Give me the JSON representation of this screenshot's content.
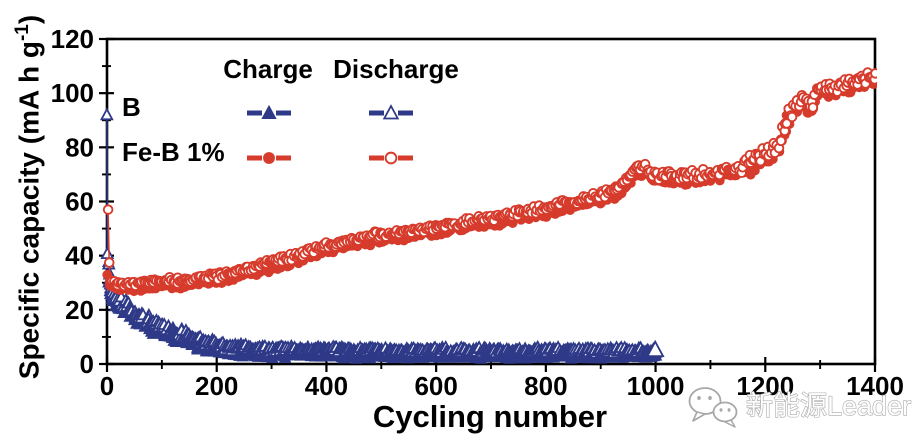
{
  "watermark": {
    "text": "新能源Leader"
  },
  "chart_data": {
    "type": "scatter",
    "title": "",
    "xlabel": "Cycling number",
    "ylabel": "Specific capacity (mA h g-1)",
    "ylabel_parts": {
      "pre": "Specific capacity (mA h g",
      "sup": "-1",
      "post": ")"
    },
    "xlim": [
      0,
      1400
    ],
    "ylim": [
      0,
      120
    ],
    "x_major_ticks": [
      0,
      200,
      400,
      600,
      800,
      1000,
      1200,
      1400
    ],
    "x_minor_ticks": [
      100,
      300,
      500,
      700,
      900,
      1100,
      1300
    ],
    "y_major_ticks": [
      0,
      20,
      40,
      60,
      80,
      100,
      120
    ],
    "y_minor_ticks": [
      10,
      30,
      50,
      70,
      90,
      110
    ],
    "grid": false,
    "axis_color": "#000000",
    "legend": {
      "position": "top-left-inside",
      "headers": [
        "Charge",
        "Discharge"
      ],
      "rows": [
        {
          "label": "B",
          "color": "#2e3a88",
          "charge_marker": "triangle-filled",
          "discharge_marker": "triangle-open"
        },
        {
          "label": "Fe-B 1%",
          "color": "#d63b2c",
          "charge_marker": "circle-filled",
          "discharge_marker": "circle-open"
        }
      ]
    },
    "series": [
      {
        "name": "B charge",
        "group": "B",
        "mode": "charge",
        "marker": "triangle-filled",
        "color": "#2e3a88",
        "x_start": 1,
        "x_end": 1000,
        "step": 2,
        "seed": 7,
        "anchors": [
          [
            1,
            38
          ],
          [
            3,
            30
          ],
          [
            5,
            27
          ],
          [
            10,
            24
          ],
          [
            20,
            21.3
          ],
          [
            33,
            19.8
          ],
          [
            50,
            16.3
          ],
          [
            78,
            13.3
          ],
          [
            120,
            9.8
          ],
          [
            170,
            6.3
          ],
          [
            225,
            3.9
          ],
          [
            300,
            3.4
          ],
          [
            500,
            3.0
          ],
          [
            800,
            2.9
          ],
          [
            1000,
            3.0
          ]
        ],
        "noise": [
          [
            6,
            0.4
          ],
          [
            40,
            2.4
          ],
          [
            150,
            2.0
          ],
          [
            300,
            1.6
          ],
          [
            1000,
            1.2
          ]
        ]
      },
      {
        "name": "B discharge",
        "group": "B",
        "mode": "discharge",
        "marker": "triangle-open",
        "color": "#2e3a88",
        "x_start": 1,
        "x_end": 1000,
        "step": 2,
        "seed": 13,
        "end_marker_scale": 1.45,
        "anchors": [
          [
            1,
            92
          ],
          [
            2,
            41
          ],
          [
            4,
            33
          ],
          [
            6,
            29.5
          ],
          [
            10,
            26
          ],
          [
            20,
            23.7
          ],
          [
            33,
            22.2
          ],
          [
            50,
            18.7
          ],
          [
            78,
            15.7
          ],
          [
            120,
            12.2
          ],
          [
            170,
            8.7
          ],
          [
            225,
            6.3
          ],
          [
            300,
            5.6
          ],
          [
            500,
            5.1
          ],
          [
            800,
            5.0
          ],
          [
            1000,
            5.0
          ]
        ],
        "noise": [
          [
            6,
            0.3
          ],
          [
            40,
            2.4
          ],
          [
            150,
            2.0
          ],
          [
            300,
            1.6
          ],
          [
            1000,
            1.2
          ]
        ]
      },
      {
        "name": "Fe-B 1% charge",
        "group": "Fe-B 1%",
        "mode": "charge",
        "marker": "circle-filled",
        "color": "#d63b2c",
        "x_start": 1,
        "x_end": 1400,
        "step": 3,
        "seed": 21,
        "anchors": [
          [
            1,
            33
          ],
          [
            5,
            29
          ],
          [
            20,
            27.8
          ],
          [
            50,
            27.8
          ],
          [
            100,
            28.6
          ],
          [
            150,
            29.2
          ],
          [
            200,
            30.5
          ],
          [
            250,
            33
          ],
          [
            300,
            35.5
          ],
          [
            350,
            38.5
          ],
          [
            400,
            42
          ],
          [
            450,
            44
          ],
          [
            500,
            45.8
          ],
          [
            550,
            47
          ],
          [
            600,
            48.5
          ],
          [
            650,
            50.3
          ],
          [
            700,
            52
          ],
          [
            750,
            53.8
          ],
          [
            800,
            55.5
          ],
          [
            850,
            58
          ],
          [
            900,
            60.5
          ],
          [
            930,
            62.5
          ],
          [
            950,
            67
          ],
          [
            965,
            71
          ],
          [
            985,
            70
          ],
          [
            1000,
            67.5
          ],
          [
            1050,
            67.5
          ],
          [
            1100,
            68.5
          ],
          [
            1150,
            70.5
          ],
          [
            1190,
            74.5
          ],
          [
            1210,
            77
          ],
          [
            1225,
            80
          ],
          [
            1240,
            90
          ],
          [
            1255,
            93
          ],
          [
            1270,
            96.5
          ],
          [
            1285,
            93
          ],
          [
            1295,
            99
          ],
          [
            1310,
            100
          ],
          [
            1330,
            100.5
          ],
          [
            1350,
            102
          ],
          [
            1370,
            103
          ],
          [
            1400,
            104.5
          ]
        ],
        "noise": [
          [
            6,
            0.4
          ],
          [
            100,
            1.1
          ],
          [
            900,
            1.6
          ],
          [
            1150,
            2.0
          ],
          [
            1260,
            3.6
          ],
          [
            1400,
            2.6
          ]
        ]
      },
      {
        "name": "Fe-B 1% discharge",
        "group": "Fe-B 1%",
        "mode": "discharge",
        "marker": "circle-open",
        "color": "#d63b2c",
        "x_start": 1,
        "x_end": 1400,
        "step": 3,
        "seed": 42,
        "anchors": [
          [
            1,
            57
          ],
          [
            5,
            31
          ],
          [
            20,
            29.8
          ],
          [
            50,
            29.8
          ],
          [
            100,
            30.6
          ],
          [
            150,
            31.2
          ],
          [
            200,
            32.5
          ],
          [
            250,
            35
          ],
          [
            300,
            37.5
          ],
          [
            350,
            40.5
          ],
          [
            400,
            44
          ],
          [
            450,
            46
          ],
          [
            500,
            47.8
          ],
          [
            550,
            49
          ],
          [
            600,
            50.5
          ],
          [
            650,
            52.3
          ],
          [
            700,
            54
          ],
          [
            750,
            55.8
          ],
          [
            800,
            57.5
          ],
          [
            850,
            60
          ],
          [
            900,
            62.5
          ],
          [
            930,
            64.5
          ],
          [
            950,
            69
          ],
          [
            965,
            73
          ],
          [
            985,
            72
          ],
          [
            1000,
            69.5
          ],
          [
            1050,
            69.5
          ],
          [
            1100,
            70.5
          ],
          [
            1150,
            72.5
          ],
          [
            1190,
            76.5
          ],
          [
            1210,
            79
          ],
          [
            1225,
            82
          ],
          [
            1240,
            92
          ],
          [
            1255,
            95
          ],
          [
            1270,
            98.5
          ],
          [
            1285,
            95
          ],
          [
            1295,
            101
          ],
          [
            1310,
            102
          ],
          [
            1330,
            102.5
          ],
          [
            1350,
            104
          ],
          [
            1370,
            105
          ],
          [
            1400,
            106.5
          ]
        ],
        "noise": [
          [
            6,
            0.4
          ],
          [
            100,
            1.1
          ],
          [
            900,
            1.6
          ],
          [
            1150,
            2.0
          ],
          [
            1260,
            3.6
          ],
          [
            1400,
            2.6
          ]
        ]
      }
    ]
  }
}
